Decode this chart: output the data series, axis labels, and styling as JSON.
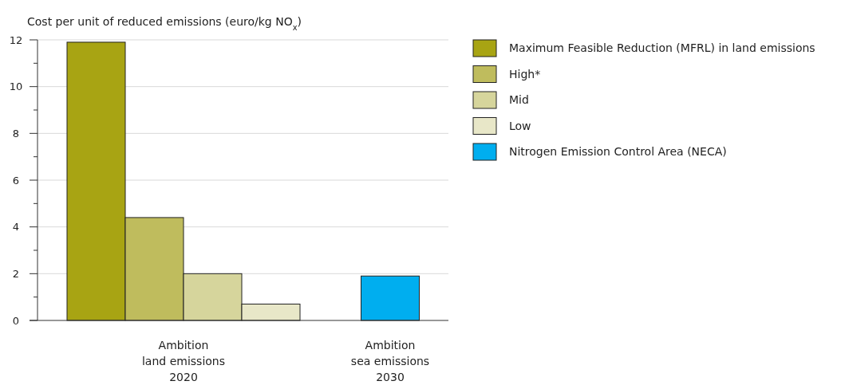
{
  "chart_data": {
    "type": "bar",
    "ylabel": "Cost per unit of reduced emissions (euro/kg NO$_{x}$)",
    "categories": [
      "Ambition\nland emissions\n2020",
      "Ambition\nsea emissions\n2030"
    ],
    "series": [
      {
        "name": "Maximum Feasible Reduction (MFRL) in land emissions",
        "color": "#a8a413",
        "values": [
          11.9,
          null
        ]
      },
      {
        "name": "High*",
        "color": "#bfbc5d",
        "values": [
          4.4,
          null
        ]
      },
      {
        "name": "Mid",
        "color": "#d6d59c",
        "values": [
          2.0,
          null
        ]
      },
      {
        "name": "Low",
        "color": "#e8e7c8",
        "values": [
          0.7,
          null
        ]
      },
      {
        "name": "Nitrogen Emission Control Area (NECA)",
        "color": "#00aeef",
        "values": [
          null,
          1.9
        ]
      }
    ],
    "ylim": [
      0,
      12
    ],
    "yticks": [
      0,
      {
        "value": 1,
        "label": null
      },
      2,
      {
        "value": 3,
        "label": null
      },
      4,
      {
        "value": 5,
        "label": null
      },
      6,
      {
        "value": 7,
        "label": null
      },
      8,
      {
        "value": 9,
        "label": null
      },
      10,
      {
        "value": 11,
        "label": null
      },
      12
    ],
    "grid": "y",
    "legend": "right"
  }
}
